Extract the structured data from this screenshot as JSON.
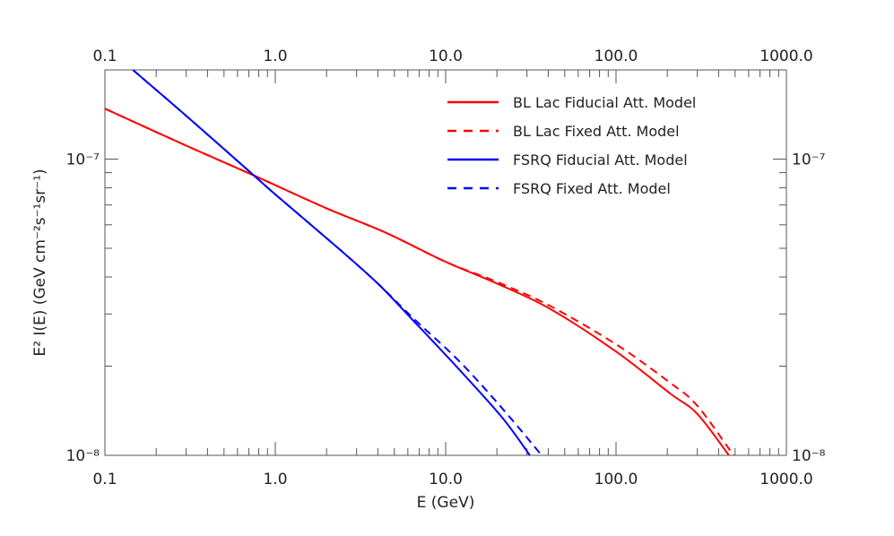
{
  "chart_data": {
    "type": "line",
    "xlabel": "E (GeV)",
    "ylabel": "E² I(E) (GeV cm⁻²s⁻¹sr⁻¹)",
    "xscale": "log",
    "yscale": "log",
    "xlim": [
      0.1,
      1000
    ],
    "ylim": [
      1e-08,
      2e-07
    ],
    "x_tick_labels": [
      "0.1",
      "1.0",
      "10.0",
      "100.0",
      "1000.0"
    ],
    "x_ticks": [
      0.1,
      1,
      10,
      100,
      1000
    ],
    "y_tick_labels": [
      "10⁻⁸",
      "10⁻⁷"
    ],
    "y_ticks": [
      1e-08,
      1e-07
    ],
    "grid": false,
    "legend_position": "top-right",
    "series": [
      {
        "name": "BL Lac Fiducial Att. Model",
        "color": "#ff0000",
        "dash": "solid",
        "x": [
          0.1,
          0.3,
          0.75,
          2,
          4.43,
          10,
          20,
          40.7,
          100,
          207,
          300,
          460
        ],
        "y": [
          1.48e-07,
          1.11e-07,
          8.8e-08,
          6.82e-08,
          5.65e-08,
          4.5e-08,
          3.8e-08,
          3.13e-08,
          2.24e-08,
          1.62e-08,
          1.38e-08,
          1e-08
        ]
      },
      {
        "name": "BL Lac Fixed Att. Model",
        "color": "#ff0000",
        "dash": "dashed",
        "x": [
          0.1,
          0.3,
          0.75,
          2,
          4.43,
          10,
          20,
          40.7,
          100,
          207,
          300,
          490
        ],
        "y": [
          1.48e-07,
          1.11e-07,
          8.8e-08,
          6.82e-08,
          5.65e-08,
          4.5e-08,
          3.85e-08,
          3.2e-08,
          2.37e-08,
          1.76e-08,
          1.47e-08,
          1e-08
        ]
      },
      {
        "name": "FSRQ Fiducial Att. Model",
        "color": "#0000ff",
        "dash": "solid",
        "x": [
          0.146,
          0.3,
          0.75,
          1,
          2.42,
          4,
          6.38,
          11.9,
          21.5,
          31.2
        ],
        "y": [
          2e-07,
          1.4e-07,
          8.8e-08,
          7.6e-08,
          4.92e-08,
          3.8e-08,
          2.87e-08,
          1.96e-08,
          1.34e-08,
          1e-08
        ]
      },
      {
        "name": "FSRQ Fixed Att. Model",
        "color": "#0000ff",
        "dash": "dashed",
        "x": [
          0.146,
          0.3,
          0.75,
          1,
          2.42,
          4,
          6.38,
          11.9,
          21.5,
          36.6
        ],
        "y": [
          2e-07,
          1.4e-07,
          8.8e-08,
          7.6e-08,
          4.92e-08,
          3.8e-08,
          2.92e-08,
          2.09e-08,
          1.44e-08,
          1e-08
        ]
      }
    ]
  }
}
